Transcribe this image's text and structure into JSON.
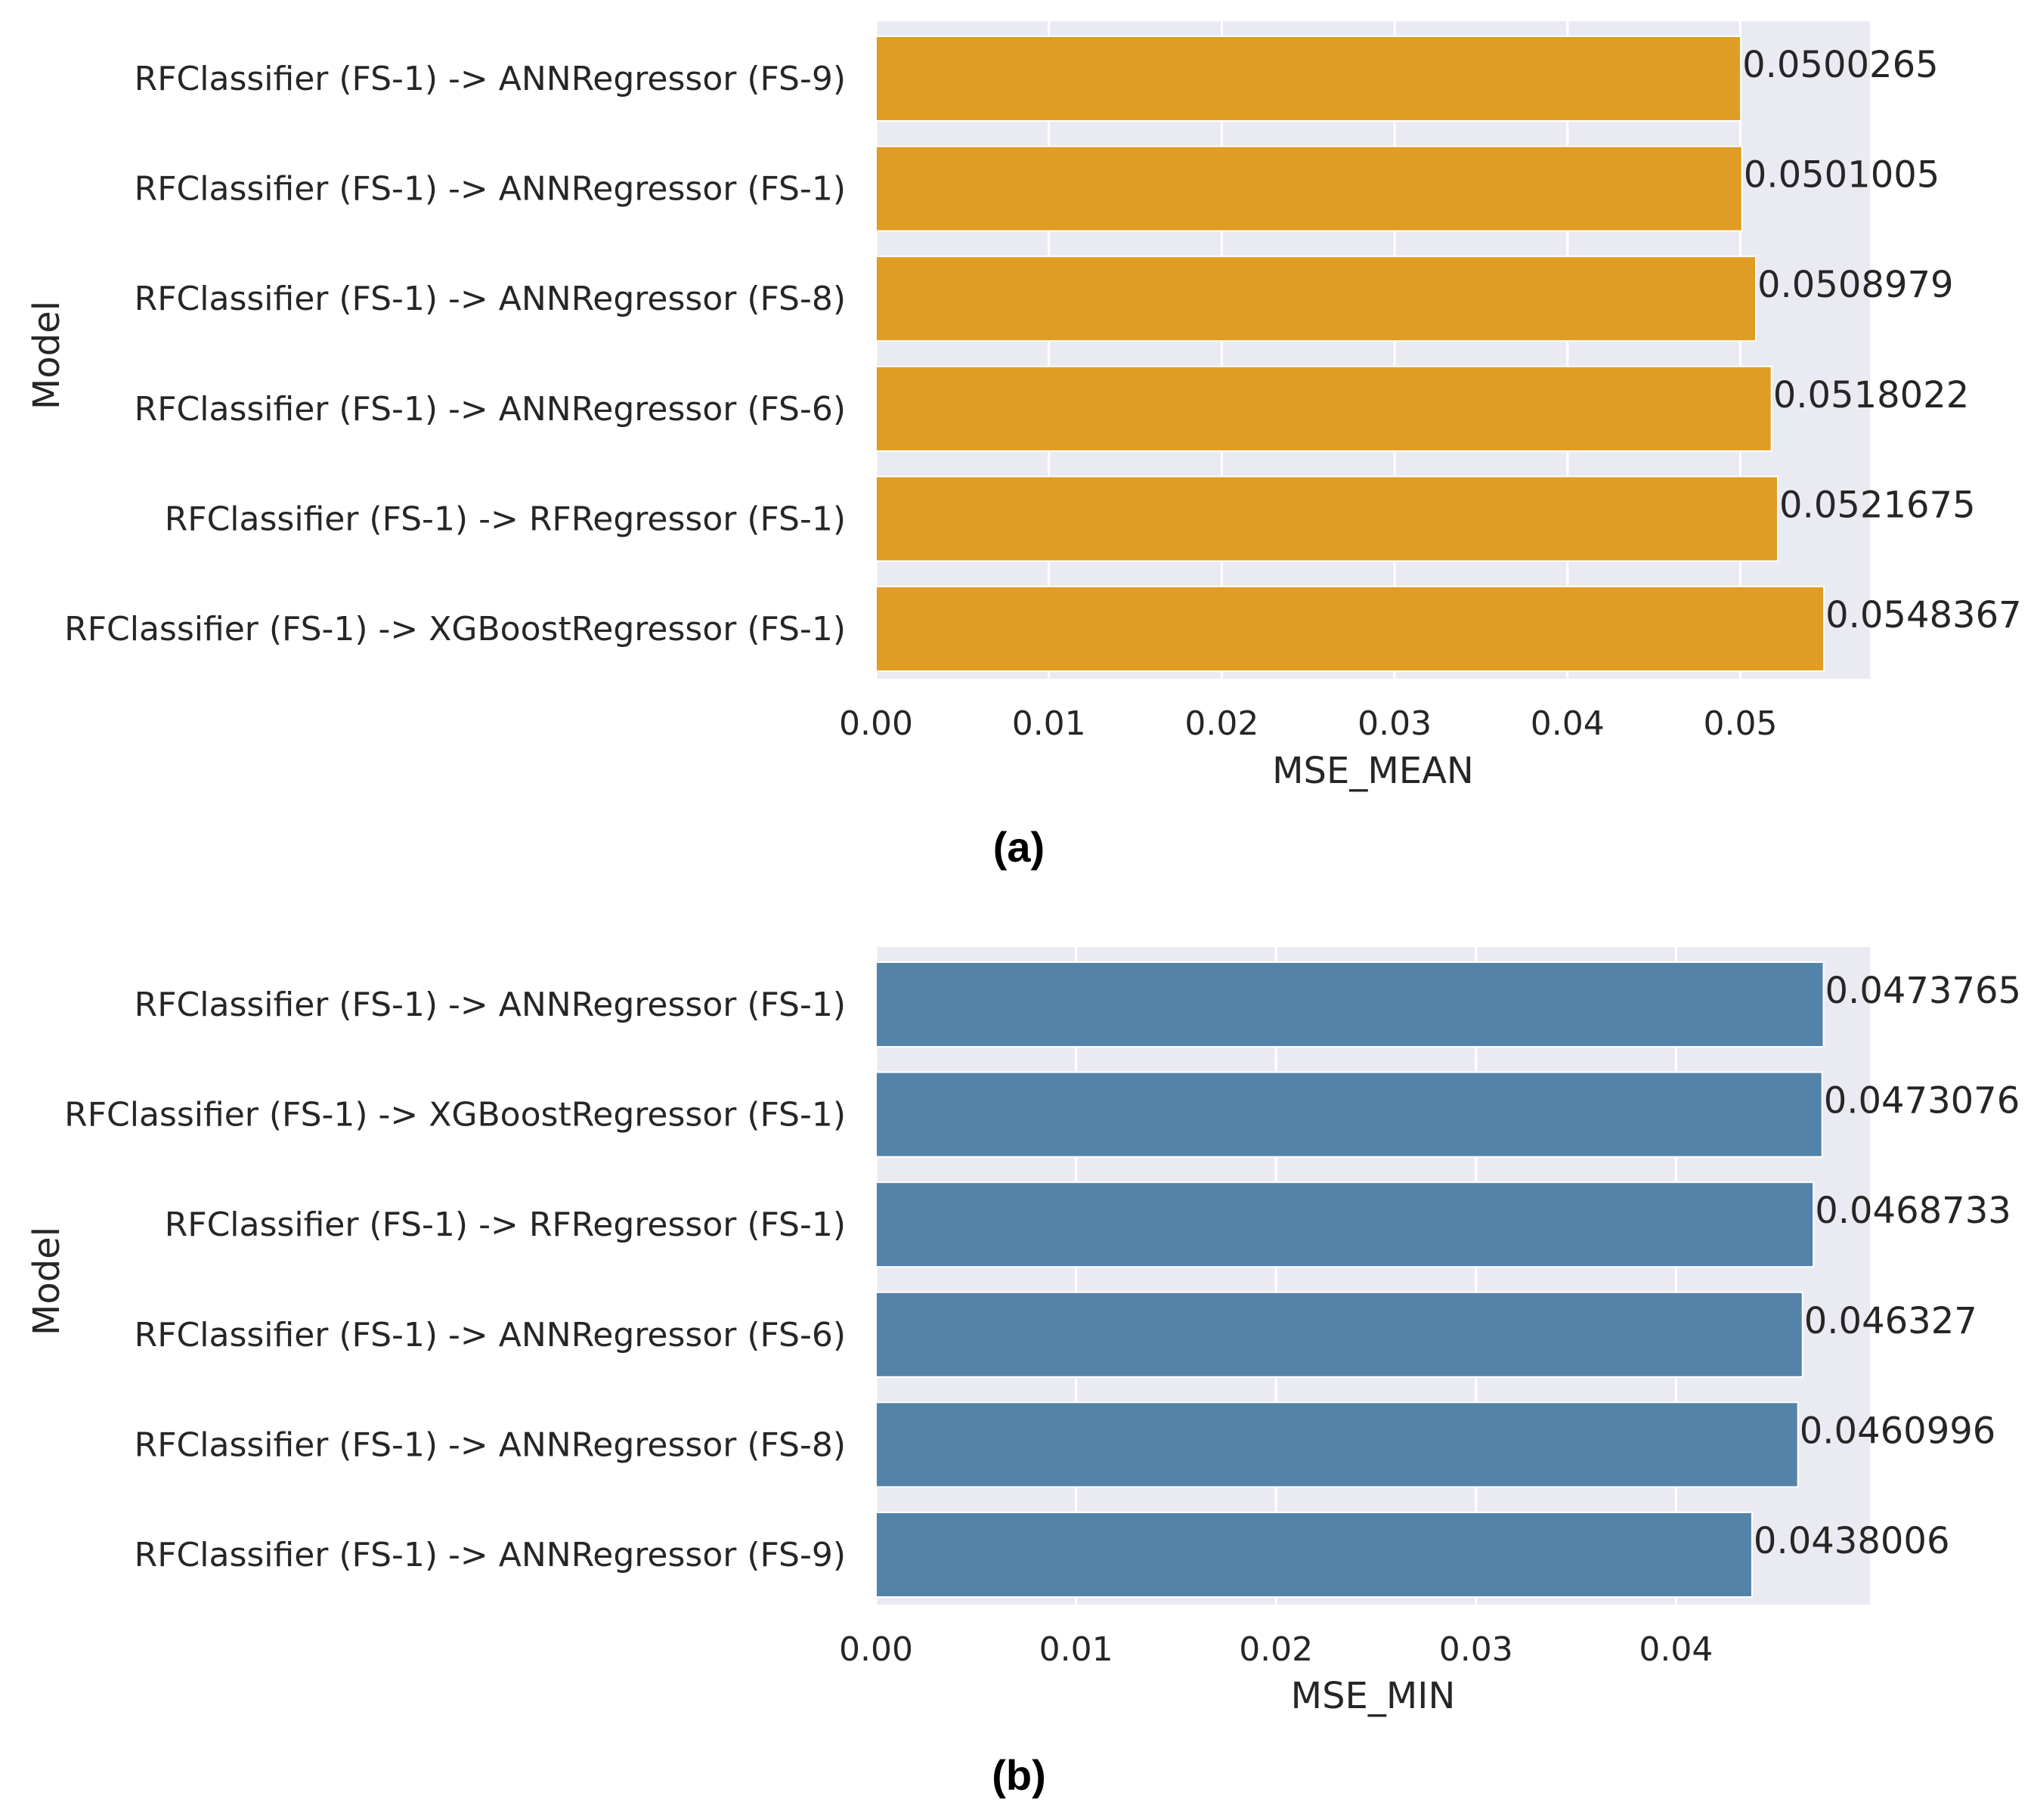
{
  "chart_data": [
    {
      "type": "bar",
      "orientation": "horizontal",
      "caption": "(a)",
      "categories": [
        "RFClassifier (FS-1) -> ANNRegressor (FS-9)",
        "RFClassifier (FS-1) -> ANNRegressor (FS-1)",
        "RFClassifier (FS-1) -> ANNRegressor (FS-8)",
        "RFClassifier (FS-1) -> ANNRegressor (FS-6)",
        "RFClassifier (FS-1) -> RFRegressor (FS-1)",
        "RFClassifier (FS-1) -> XGBoostRegressor (FS-1)"
      ],
      "values": [
        0.0500265,
        0.0501005,
        0.0508979,
        0.0518022,
        0.0521675,
        0.0548367
      ],
      "value_labels": [
        "0.0500265",
        "0.0501005",
        "0.0508979",
        "0.0518022",
        "0.0521675",
        "0.0548367"
      ],
      "xlabel": "MSE_MEAN",
      "ylabel": "Model",
      "xlim": [
        0,
        0.0575
      ],
      "xticks": [
        0,
        0.01,
        0.02,
        0.03,
        0.04,
        0.05
      ],
      "xtick_labels": [
        "0.00",
        "0.01",
        "0.02",
        "0.03",
        "0.04",
        "0.05"
      ],
      "color": "#e09d24",
      "grid": true
    },
    {
      "type": "bar",
      "orientation": "horizontal",
      "caption": "(b)",
      "categories": [
        "RFClassifier (FS-1) -> ANNRegressor (FS-1)",
        "RFClassifier (FS-1) -> XGBoostRegressor (FS-1)",
        "RFClassifier (FS-1) -> RFRegressor (FS-1)",
        "RFClassifier (FS-1) -> ANNRegressor (FS-6)",
        "RFClassifier (FS-1) -> ANNRegressor (FS-8)",
        "RFClassifier (FS-1) -> ANNRegressor (FS-9)"
      ],
      "values": [
        0.0473765,
        0.0473076,
        0.0468733,
        0.046327,
        0.0460996,
        0.0438006
      ],
      "value_labels": [
        "0.0473765",
        "0.0473076",
        "0.0468733",
        "0.046327",
        "0.0460996",
        "0.0438006"
      ],
      "xlabel": "MSE_MIN",
      "ylabel": "Model",
      "xlim": [
        0,
        0.0497
      ],
      "xticks": [
        0,
        0.01,
        0.02,
        0.03,
        0.04
      ],
      "xtick_labels": [
        "0.00",
        "0.01",
        "0.02",
        "0.03",
        "0.04"
      ],
      "color": "#5483a9",
      "grid": true
    }
  ],
  "colors": {
    "plot_background": "#eaeaf2",
    "grid": "#ffffff",
    "text": "#262626"
  }
}
